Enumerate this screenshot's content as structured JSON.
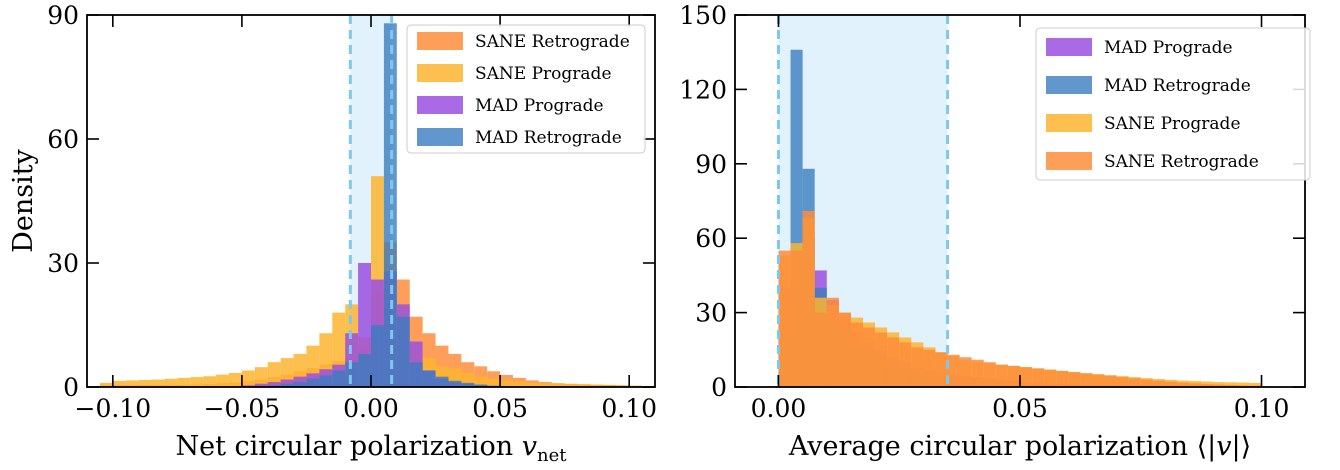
{
  "chart_data": [
    {
      "type": "histogram",
      "xlabel": "Net circular polarization v_net",
      "xlabel_main": "Net circular polarization ",
      "xlabel_var": "v",
      "xlabel_sub": "net",
      "ylabel": "Density",
      "xlim": [
        -0.11,
        0.11
      ],
      "ylim": [
        0,
        90
      ],
      "xticks": [
        -0.1,
        -0.05,
        0.0,
        0.05,
        0.1
      ],
      "xtick_labels": [
        "−0.10",
        "−0.05",
        "0.00",
        "0.05",
        "0.10"
      ],
      "yticks": [
        0,
        30,
        60,
        90
      ],
      "ytick_labels": [
        "0",
        "30",
        "60",
        "90"
      ],
      "shaded_band": [
        -0.008,
        0.008
      ],
      "legend_position": "upper-right",
      "bin_width": 0.005,
      "bins_start": -0.105,
      "series": [
        {
          "name": "SANE Retrograde",
          "color": "#fd8d3c",
          "opacity": 0.85,
          "values": [
            0.5,
            0.5,
            0.5,
            0.5,
            0.5,
            0.5,
            0.5,
            0.6,
            0.7,
            0.9,
            1.1,
            1.5,
            1.8,
            2.4,
            3,
            3.8,
            4.6,
            5.5,
            6.3,
            7,
            10,
            23,
            35,
            26,
            17,
            13,
            10,
            8,
            6,
            5,
            3.8,
            2.9,
            2.2,
            1.6,
            1.2,
            0.9,
            0.7,
            0.6,
            0.5,
            0.5,
            0.4,
            0.3
          ]
        },
        {
          "name": "SANE Prograde",
          "color": "#fdb42f",
          "opacity": 0.85,
          "values": [
            1,
            1.5,
            1.6,
            1.7,
            1.8,
            2,
            2.2,
            2.4,
            2.6,
            3,
            3.4,
            4,
            4.8,
            6,
            7,
            8,
            10,
            13,
            18,
            20,
            12,
            51,
            24,
            20,
            9,
            7,
            5,
            4.5,
            3.5,
            2.5,
            2,
            1.6,
            1.3,
            1.1,
            1,
            0.9,
            0.8,
            0.7,
            0.6,
            0.5,
            0.4,
            0.3
          ]
        },
        {
          "name": "MAD Prograde",
          "color": "#9b4fe0",
          "opacity": 0.85,
          "values": [
            0,
            0,
            0,
            0,
            0,
            0,
            0,
            0,
            0,
            0,
            0.2,
            0.4,
            0.8,
            1.2,
            1.8,
            2.5,
            3.3,
            4.3,
            5.4,
            13,
            30,
            26,
            28,
            20,
            11,
            4,
            2,
            1.2,
            0.8,
            0.5,
            0.3,
            0.2,
            0.1,
            0,
            0,
            0,
            0,
            0,
            0,
            0,
            0,
            0
          ]
        },
        {
          "name": "MAD Retrograde",
          "color": "#3a7dbf",
          "opacity": 0.8,
          "values": [
            0,
            0,
            0,
            0,
            0,
            0,
            0,
            0,
            0,
            0,
            0,
            0,
            0.2,
            0.4,
            0.8,
            1.2,
            2,
            2.8,
            4,
            6,
            8,
            15,
            88,
            17,
            6,
            4,
            2.5,
            1.5,
            1,
            0.6,
            0.3,
            0.2,
            0.1,
            0,
            0,
            0,
            0,
            0,
            0,
            0,
            0,
            0
          ]
        }
      ]
    },
    {
      "type": "histogram",
      "xlabel": "Average circular polarization ⟨|v|⟩",
      "xlabel_main": "Average circular polarization ⟨|",
      "xlabel_var": "v",
      "xlabel_end": "|⟩",
      "ylabel": "",
      "xlim": [
        -0.009,
        0.109
      ],
      "ylim": [
        0,
        150
      ],
      "xticks": [
        0.0,
        0.05,
        0.1
      ],
      "xtick_labels": [
        "0.00",
        "0.05",
        "0.10"
      ],
      "yticks": [
        0,
        30,
        60,
        90,
        120,
        150
      ],
      "ytick_labels": [
        "0",
        "30",
        "60",
        "90",
        "120",
        "150"
      ],
      "shaded_band": [
        0.0,
        0.035
      ],
      "legend_position": "upper-right",
      "bin_width": 0.0025,
      "bins_start": 0.0,
      "series": [
        {
          "name": "MAD Prograde",
          "color": "#9b4fe0",
          "opacity": 0.85,
          "values": [
            40,
            52,
            60,
            47,
            35,
            28,
            22,
            18,
            15,
            12,
            10,
            8,
            7,
            6,
            5,
            4.5,
            4,
            3.5,
            3,
            2.5,
            2,
            1.7,
            1.4,
            1.2,
            1,
            0.8,
            0.6,
            0.5,
            0.4,
            0.3,
            0.2,
            0.1
          ]
        },
        {
          "name": "MAD Retrograde",
          "color": "#3a7dbf",
          "opacity": 0.8,
          "values": [
            20,
            136,
            88,
            40,
            28,
            22,
            18,
            15,
            12,
            10,
            8,
            7,
            6,
            5,
            4,
            3,
            2.5,
            2,
            1.5,
            1,
            0.8,
            0.5,
            0.3,
            0.2,
            0.1,
            0,
            0,
            0,
            0,
            0,
            0,
            0
          ]
        },
        {
          "name": "SANE Prograde",
          "color": "#fdb42f",
          "opacity": 0.85,
          "values": [
            53,
            58,
            68,
            36,
            33,
            30,
            28,
            26,
            24,
            22,
            20,
            18,
            16,
            14,
            12.5,
            11,
            10,
            9.5,
            9,
            8.5,
            8,
            7.5,
            7,
            6.5,
            6,
            5.6,
            5.2,
            4.8,
            4.4,
            4,
            3.6,
            3.2,
            2.9,
            2.6,
            2.4,
            2.2,
            2,
            1.9,
            1.8,
            1.6
          ]
        },
        {
          "name": "SANE Retrograde",
          "color": "#fd8d3c",
          "opacity": 0.85,
          "values": [
            55,
            55,
            71,
            30,
            36,
            30,
            26,
            24,
            22,
            20,
            18,
            16,
            15,
            14,
            13,
            12,
            11,
            10,
            9,
            8.5,
            8,
            7.5,
            7,
            6.5,
            6,
            5.5,
            5,
            4.5,
            4,
            3.5,
            3,
            2.6,
            2.2,
            1.8,
            1.5,
            1.2,
            1,
            0.8,
            0.6,
            0.5
          ]
        }
      ]
    }
  ]
}
